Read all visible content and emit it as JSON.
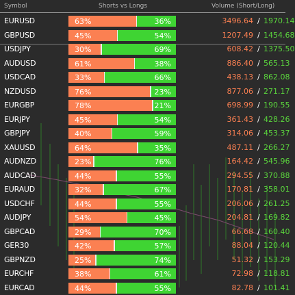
{
  "header": {
    "symbol": "Symbol",
    "shorts_vs_longs": "Shorts vs Longs",
    "volume": "Volume (Short/Long)"
  },
  "colors": {
    "short": "#fb8052",
    "long": "#3fd433",
    "short_volume": "#fb8052",
    "long_volume": "#5bd63d"
  },
  "rows": [
    {
      "symbol": "EURUSD",
      "short_pct": 63,
      "long_pct": 36,
      "short_label": "63%",
      "long_label": "36%",
      "short_vol": "3496.64",
      "long_vol": "1970.14"
    },
    {
      "symbol": "GBPUSD",
      "short_pct": 45,
      "long_pct": 54,
      "short_label": "45%",
      "long_label": "54%",
      "short_vol": "1207.49",
      "long_vol": "1454.68"
    },
    {
      "symbol": "USDJPY",
      "short_pct": 30,
      "long_pct": 69,
      "short_label": "30%",
      "long_label": "69%",
      "short_vol": "608.42",
      "long_vol": "1375.50"
    },
    {
      "symbol": "AUDUSD",
      "short_pct": 61,
      "long_pct": 38,
      "short_label": "61%",
      "long_label": "38%",
      "short_vol": "886.40",
      "long_vol": "565.13"
    },
    {
      "symbol": "USDCAD",
      "short_pct": 33,
      "long_pct": 66,
      "short_label": "33%",
      "long_label": "66%",
      "short_vol": "438.13",
      "long_vol": "862.08"
    },
    {
      "symbol": "NZDUSD",
      "short_pct": 76,
      "long_pct": 23,
      "short_label": "76%",
      "long_label": "23%",
      "short_vol": "877.06",
      "long_vol": "271.17"
    },
    {
      "symbol": "EURGBP",
      "short_pct": 78,
      "long_pct": 21,
      "short_label": "78%",
      "long_label": "21%",
      "short_vol": "698.99",
      "long_vol": "190.55"
    },
    {
      "symbol": "EURJPY",
      "short_pct": 45,
      "long_pct": 54,
      "short_label": "45%",
      "long_label": "54%",
      "short_vol": "361.43",
      "long_vol": "428.26"
    },
    {
      "symbol": "GBPJPY",
      "short_pct": 40,
      "long_pct": 59,
      "short_label": "40%",
      "long_label": "59%",
      "short_vol": "314.06",
      "long_vol": "453.37"
    },
    {
      "symbol": "XAUUSD",
      "short_pct": 64,
      "long_pct": 35,
      "short_label": "64%",
      "long_label": "35%",
      "short_vol": "487.11",
      "long_vol": "266.27"
    },
    {
      "symbol": "AUDNZD",
      "short_pct": 23,
      "long_pct": 76,
      "short_label": "23%",
      "long_label": "76%",
      "short_vol": "164.42",
      "long_vol": "545.96"
    },
    {
      "symbol": "AUDCAD",
      "short_pct": 44,
      "long_pct": 55,
      "short_label": "44%",
      "long_label": "55%",
      "short_vol": "294.55",
      "long_vol": "370.88"
    },
    {
      "symbol": "EURAUD",
      "short_pct": 32,
      "long_pct": 67,
      "short_label": "32%",
      "long_label": "67%",
      "short_vol": "170.81",
      "long_vol": "358.01"
    },
    {
      "symbol": "USDCHF",
      "short_pct": 44,
      "long_pct": 55,
      "short_label": "44%",
      "long_label": "55%",
      "short_vol": "206.06",
      "long_vol": "261.25"
    },
    {
      "symbol": "AUDJPY",
      "short_pct": 54,
      "long_pct": 45,
      "short_label": "54%",
      "long_label": "45%",
      "short_vol": "204.81",
      "long_vol": "169.82"
    },
    {
      "symbol": "GBPCAD",
      "short_pct": 29,
      "long_pct": 70,
      "short_label": "29%",
      "long_label": "70%",
      "short_vol": "66.68",
      "long_vol": "160.40"
    },
    {
      "symbol": "GER30",
      "short_pct": 42,
      "long_pct": 57,
      "short_label": "42%",
      "long_label": "57%",
      "short_vol": "88.04",
      "long_vol": "120.44"
    },
    {
      "symbol": "GBPNZD",
      "short_pct": 25,
      "long_pct": 74,
      "short_label": "25%",
      "long_label": "74%",
      "short_vol": "51.32",
      "long_vol": "153.29"
    },
    {
      "symbol": "EURCHF",
      "short_pct": 38,
      "long_pct": 61,
      "short_label": "38%",
      "long_label": "61%",
      "short_vol": "72.98",
      "long_vol": "118.81"
    },
    {
      "symbol": "EURCAD",
      "short_pct": 44,
      "long_pct": 55,
      "short_label": "44%",
      "long_label": "55%",
      "short_vol": "82.78",
      "long_vol": "101.41"
    }
  ]
}
